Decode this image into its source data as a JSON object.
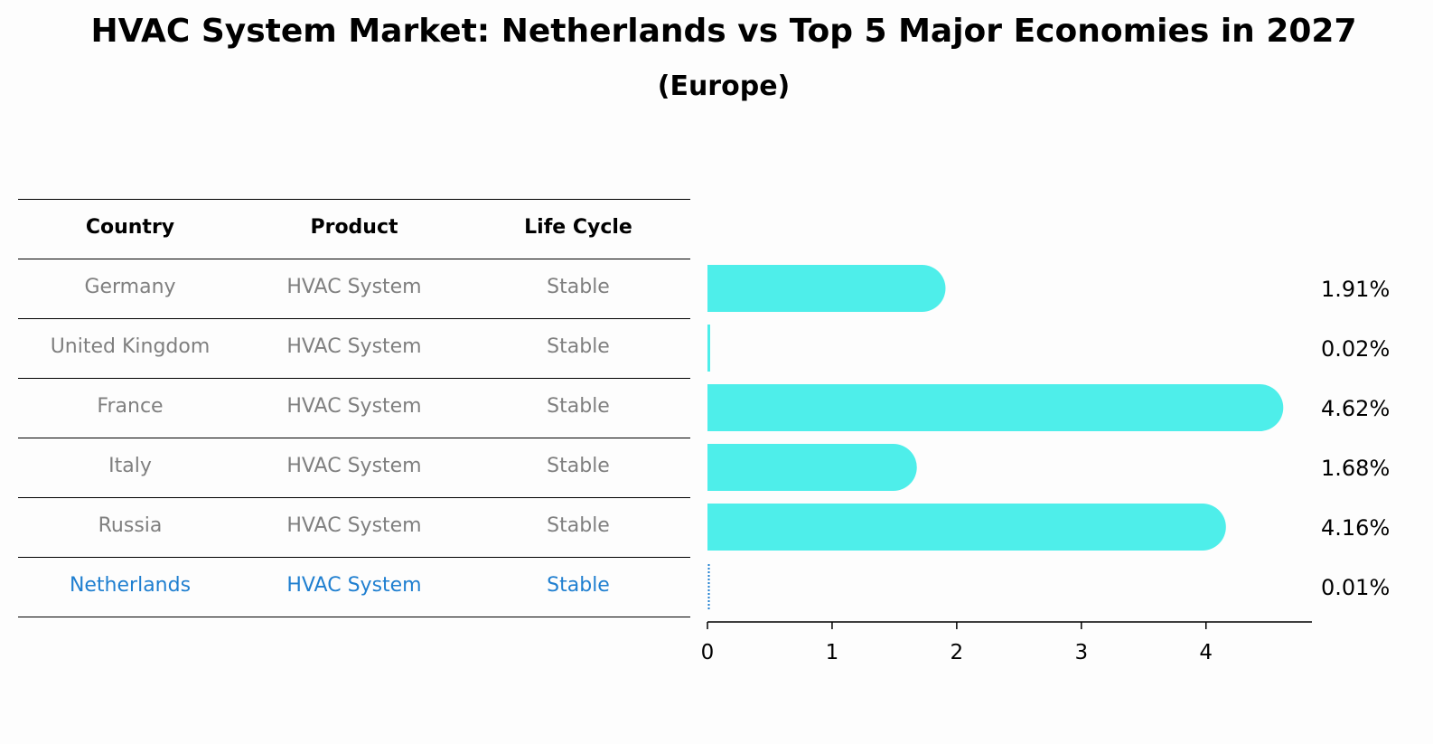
{
  "title": "HVAC System Market: Netherlands vs Top 5 Major Economies in 2027",
  "subtitle": "(Europe)",
  "table": {
    "headers": [
      "Country",
      "Product",
      "Life Cycle"
    ],
    "rows": [
      {
        "country": "Germany",
        "product": "HVAC System",
        "life_cycle": "Stable",
        "highlight": false
      },
      {
        "country": "United Kingdom",
        "product": "HVAC System",
        "life_cycle": "Stable",
        "highlight": false
      },
      {
        "country": "France",
        "product": "HVAC System",
        "life_cycle": "Stable",
        "highlight": false
      },
      {
        "country": "Italy",
        "product": "HVAC System",
        "life_cycle": "Stable",
        "highlight": false
      },
      {
        "country": "Russia",
        "product": "HVAC System",
        "life_cycle": "Stable",
        "highlight": false
      },
      {
        "country": "Netherlands",
        "product": "HVAC System",
        "life_cycle": "Stable",
        "highlight": true
      }
    ]
  },
  "colors": {
    "bar": "#4eeeea",
    "highlight": "#1f7fd0",
    "muted_text": "#7f7f7f"
  },
  "chart_data": {
    "type": "bar",
    "orientation": "horizontal",
    "categories": [
      "Germany",
      "United Kingdom",
      "France",
      "Italy",
      "Russia",
      "Netherlands"
    ],
    "values": [
      1.91,
      0.02,
      4.62,
      1.68,
      4.16,
      0.01
    ],
    "value_labels": [
      "1.91%",
      "0.02%",
      "4.62%",
      "1.68%",
      "4.16%",
      "0.01%"
    ],
    "xlim": [
      0,
      4.85
    ],
    "xticks": [
      0,
      1,
      2,
      3,
      4
    ],
    "xlabel": "",
    "ylabel": "",
    "grid": false
  }
}
